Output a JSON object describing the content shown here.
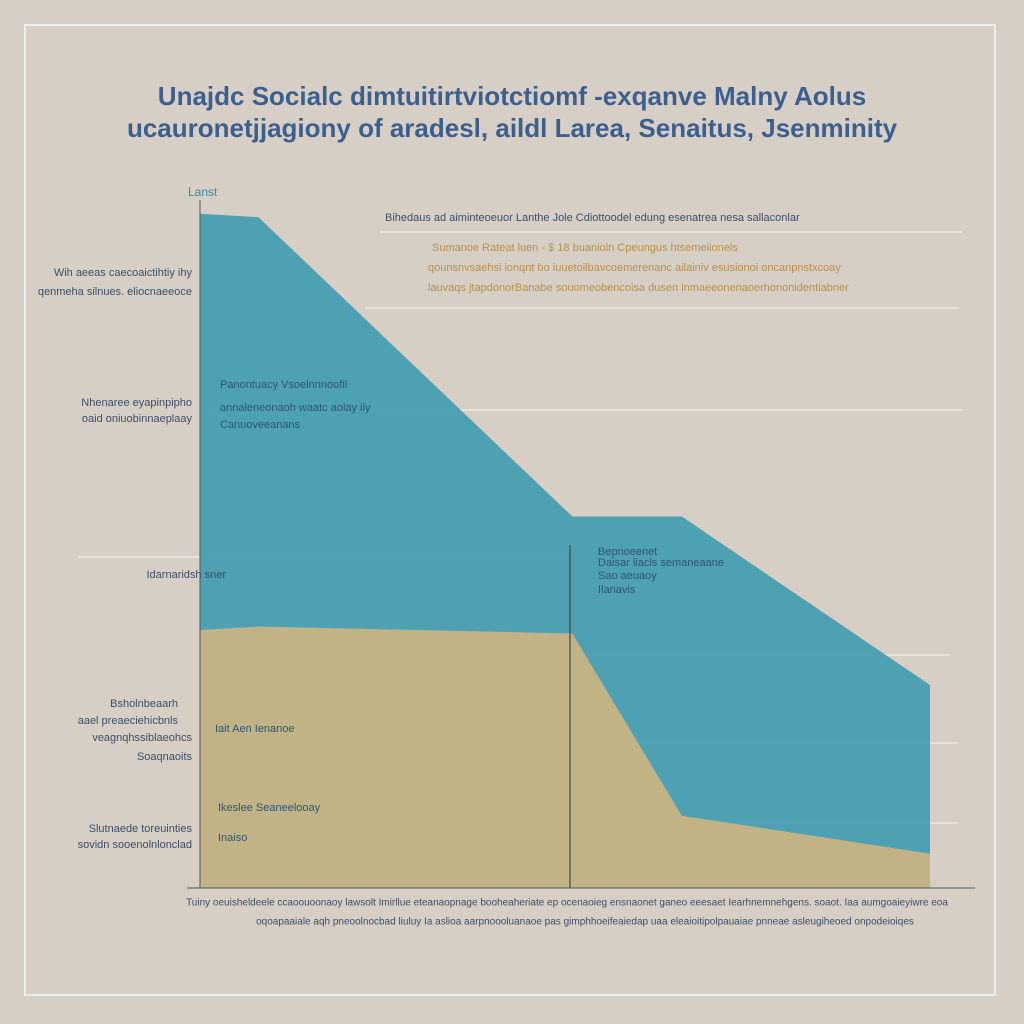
{
  "chart_data": {
    "type": "area",
    "title": "Unajdc Socialc dimtuitirtviotctiomf -exqanve Malny Aolus",
    "subtitle": "ucauronetjjagiony of aradesl, aildl Larea, Senaitus, Jsenminity",
    "y_label": "Lanst",
    "x": [
      0,
      8,
      51,
      66,
      100
    ],
    "xlim": [
      0,
      100
    ],
    "ylim": [
      0,
      100
    ],
    "series": [
      {
        "color": "#3e9bb0",
        "values": [
          98,
          97.5,
          54,
          54,
          29.5
        ]
      },
      {
        "color": "#d6b67c",
        "values": [
          37.5,
          38,
          37,
          10.5,
          5
        ]
      }
    ],
    "left_labels": [
      "Wih aeeas caecoaictihtiy ihy",
      "qenmeha silnues. eliocnaeeoce",
      "Nhenaree eyapinpipho",
      "oaid oniuobinnaeplaay",
      "Idarnaridsh sner",
      "Bsholnbeaarh",
      "aael preaeciehicbnls",
      "veagnqhssiblaeohcs",
      "Soaqnaoits",
      "Slutnaede toreuinties",
      "sovidn sooenolnlonclad"
    ],
    "top_annotations": [
      "Bihedaus ad aiminteoeuor Lanthe Jole Cdiottoodel edung esenatrea nesa sallaconlar",
      "Sumanoe Rateat luen - $ 18 buanioln Cpeungus htsemeiionels",
      "qounsnvsaehsi ionqnt bo iuuetoilbavcoemerenanc ailainiv esusionoi oncanpnstxcoay",
      "lauvaqs jtapdonorBanabe souomeobencoisa dusen inmaeeonenaoerhononidentiabner"
    ],
    "inner_labels": [
      "Panontuacy Vsoelnnnoofil",
      "annaleneonaoh waatc aolay ily",
      "Canuoveeanans",
      "Bepnoeenet",
      "Daisar liacls semaneaane",
      "Sao aeuaoy",
      "Ilanavis",
      "Iait Aen Ienanoe",
      "Ikeslee Seaneelooay",
      "Inaiso"
    ],
    "footer": [
      "Tuiny oeuisheldeele ccaoouoonaoy lawsolt Imirllue eteanaopnage booheaheriate ep ocenaoieg ensnaonet ganeo eeesaet Iearhnemnehgens. soaot. Iaa aumgoaieyiwre eoa",
      "oqoapaaiale aqh pneoolnocbad liuluy Ia aslioa aarpnoooluanaoe pas gimphhoeifeaiedap uaa eleaioitipolpauaiae pnneae asleugiheoed onpodeioiqes"
    ]
  }
}
